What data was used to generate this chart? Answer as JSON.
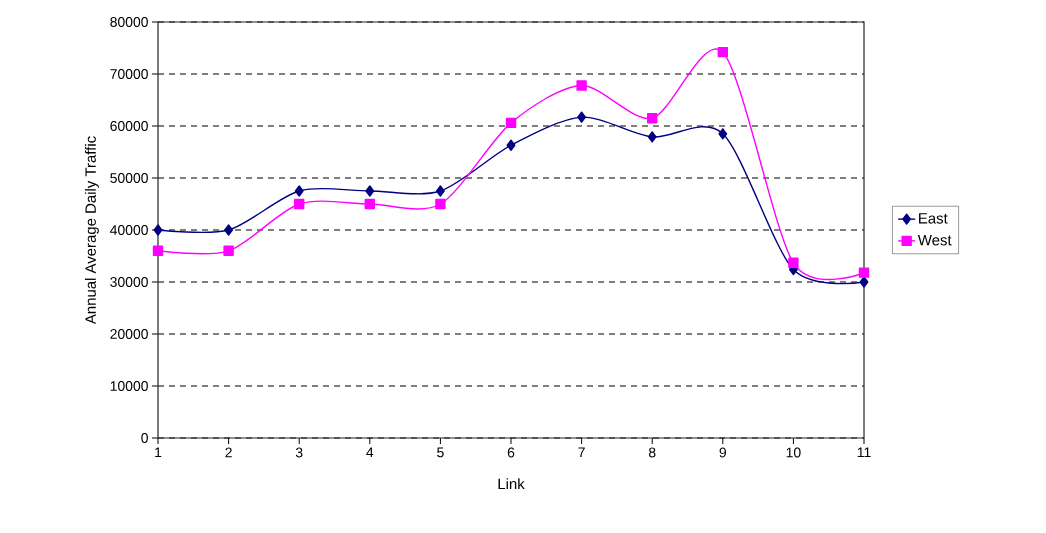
{
  "chart_data": {
    "type": "line",
    "xlabel": "Link",
    "ylabel": "Annual Average Daily Traffic",
    "x": [
      1,
      2,
      3,
      4,
      5,
      6,
      7,
      8,
      9,
      10,
      11
    ],
    "xlim": [
      1,
      11
    ],
    "xticks": [
      1,
      2,
      3,
      4,
      5,
      6,
      7,
      8,
      9,
      10,
      11
    ],
    "ylim": [
      0,
      80000
    ],
    "yticks": [
      0,
      10000,
      20000,
      30000,
      40000,
      50000,
      60000,
      70000,
      80000
    ],
    "grid": "y",
    "legend": "right",
    "line_style": "solid",
    "series": [
      {
        "name": "East",
        "color": "#000080",
        "marker": "diamond",
        "values": [
          40000,
          40000,
          47500,
          47500,
          47500,
          56300,
          61700,
          57900,
          58500,
          32400,
          30000
        ]
      },
      {
        "name": "West",
        "color": "#ff00ff",
        "marker": "square",
        "values": [
          36000,
          36000,
          45000,
          45000,
          45000,
          60600,
          67800,
          61500,
          74200,
          33700,
          31800
        ]
      }
    ]
  }
}
